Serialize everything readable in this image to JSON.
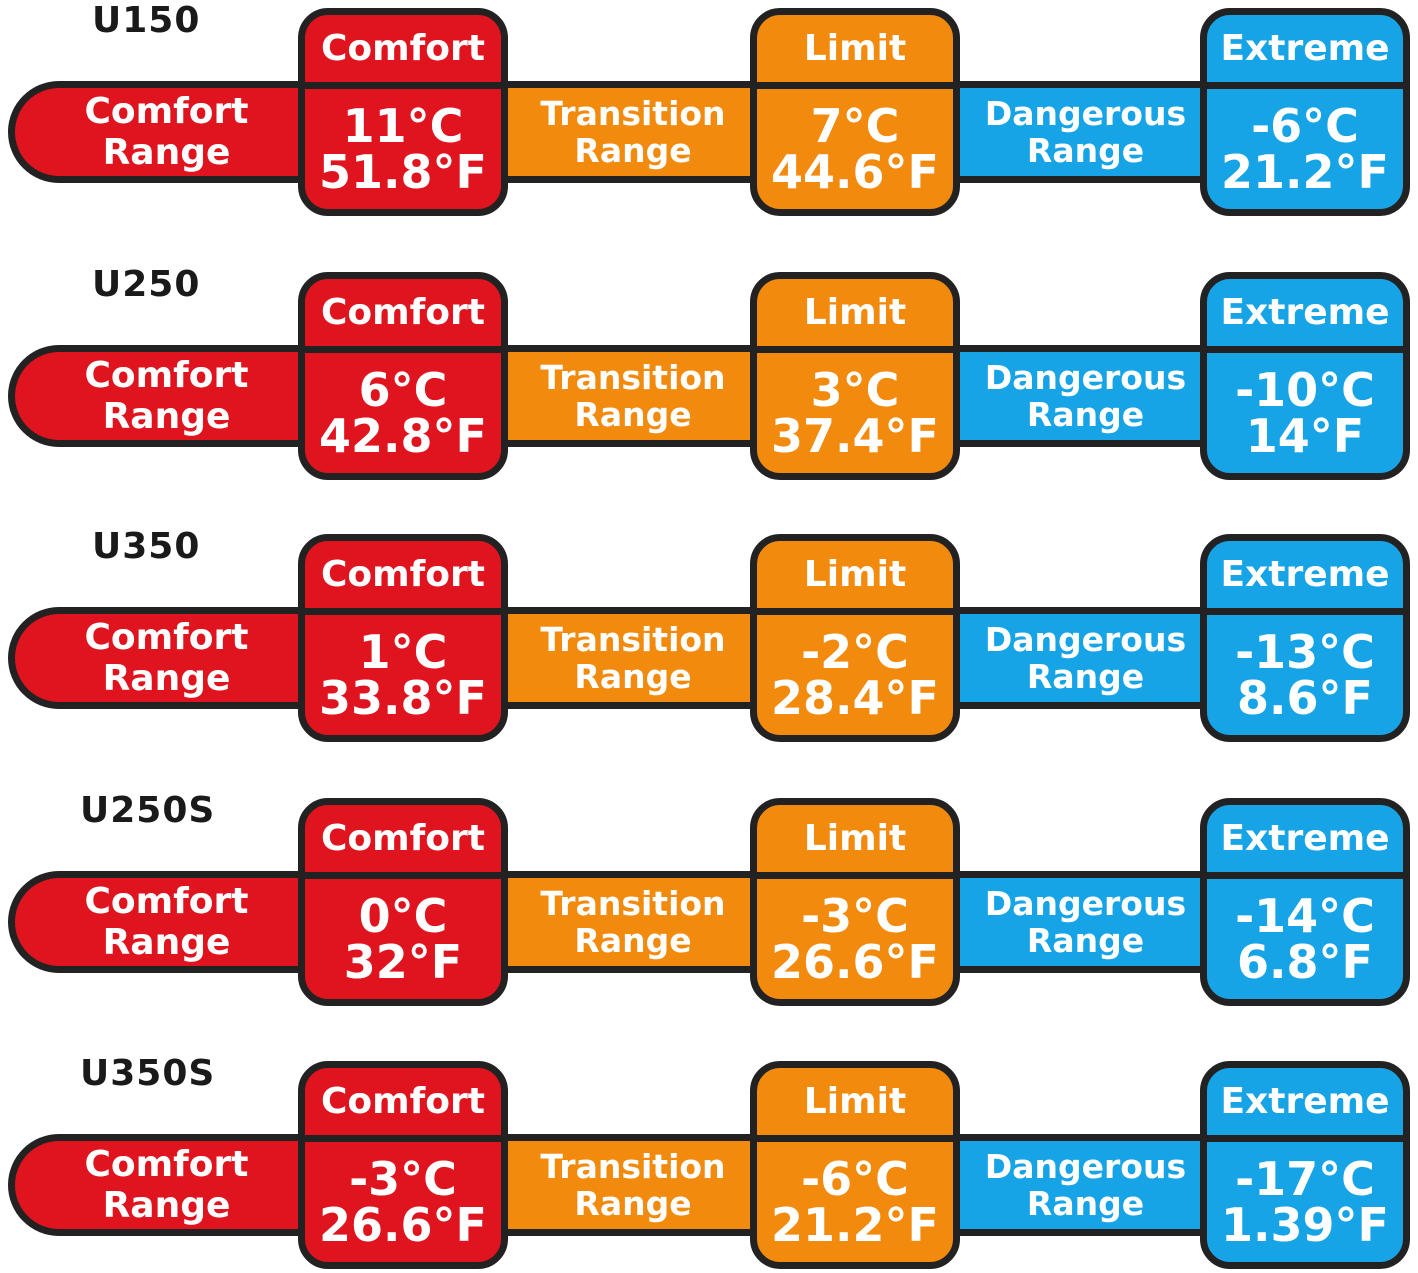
{
  "colors": {
    "comfort": "#e0141e",
    "limit": "#f28a0e",
    "extreme": "#17a4e6",
    "outline": "#222222"
  },
  "labels": {
    "comfort_range": "Comfort Range",
    "comfort": "Comfort",
    "transition_1": "Transition",
    "transition_2": "Range",
    "limit": "Limit",
    "dangerous_1": "Dangerous",
    "dangerous_2": "Range",
    "extreme": "Extreme"
  },
  "rows": [
    {
      "model": "U150",
      "comfort_c": "11°C",
      "comfort_f": "51.8°F",
      "limit_c": "7°C",
      "limit_f": "44.6°F",
      "extreme_c": "-6°C",
      "extreme_f": "21.2°F"
    },
    {
      "model": "U250",
      "comfort_c": "6°C",
      "comfort_f": "42.8°F",
      "limit_c": "3°C",
      "limit_f": "37.4°F",
      "extreme_c": "-10°C",
      "extreme_f": "14°F"
    },
    {
      "model": "U350",
      "comfort_c": "1°C",
      "comfort_f": "33.8°F",
      "limit_c": "-2°C",
      "limit_f": "28.4°F",
      "extreme_c": "-13°C",
      "extreme_f": "8.6°F"
    },
    {
      "model": "U250S",
      "comfort_c": "0°C",
      "comfort_f": "32°F",
      "limit_c": "-3°C",
      "limit_f": "26.6°F",
      "extreme_c": "-14°C",
      "extreme_f": "6.8°F"
    },
    {
      "model": "U350S",
      "comfort_c": "-3°C",
      "comfort_f": "26.6°F",
      "limit_c": "-6°C",
      "limit_f": "21.2°F",
      "extreme_c": "-17°C",
      "extreme_f": "1.39°F"
    }
  ]
}
